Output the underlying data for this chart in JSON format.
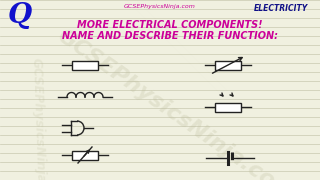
{
  "bg_color": "#f0f0e0",
  "line_color": "#c8c8b0",
  "title_line1": "MORE ELECTRICAL COMPONENTS!",
  "title_line2": "NAME AND DESCRIBE THEIR FUNCTION:",
  "title_color": "#cc0099",
  "q_color": "#1111cc",
  "electricity_color": "#111188",
  "website_color": "#cc0099",
  "website_text": "GCSEPhysicsNinja.com",
  "electricity_text": "ELECTRICITY",
  "q_text": "Q",
  "symbol_color": "#222222",
  "watermark_color": "#bbbb99",
  "watermark_text": "GCSEPhysicsNinja.com"
}
